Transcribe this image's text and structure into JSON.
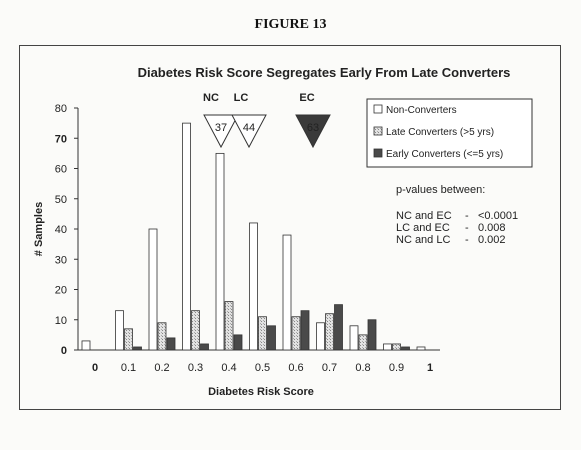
{
  "figure_label": "FIGURE 13",
  "chart_data": {
    "type": "bar",
    "title": "Diabetes Risk Score Segregates Early From Late Converters",
    "xlabel": "Diabetes Risk Score",
    "ylabel": "# Samples",
    "ylim": [
      0,
      80
    ],
    "yticks": [
      "0",
      "10",
      "20",
      "30",
      "40",
      "50",
      "60",
      "70",
      "80"
    ],
    "categories": [
      "0",
      "0.1",
      "0.2",
      "0.3",
      "0.4",
      "0.5",
      "0.6",
      "0.7",
      "0.8",
      "0.9",
      "1"
    ],
    "highlight_color": "#c8961e",
    "highlight_labels": [
      "0",
      "70",
      "1"
    ],
    "series": [
      {
        "name": "Non-Converters",
        "fill": "#ffffff",
        "values": [
          3,
          13,
          40,
          75,
          65,
          42,
          38,
          9,
          8,
          2,
          1
        ]
      },
      {
        "name": "Late Converters (>5 yrs)",
        "fill": "#d8d8d8",
        "values": [
          0,
          7,
          9,
          13,
          16,
          11,
          11,
          12,
          5,
          2,
          0
        ]
      },
      {
        "name": "Early Converters (<=5 yrs)",
        "fill": "#4a4a4a",
        "values": [
          0,
          1,
          4,
          2,
          5,
          8,
          13,
          15,
          10,
          1,
          0
        ]
      }
    ],
    "legend_position": "top-right",
    "median_markers": [
      {
        "label": "NC",
        "value": "37",
        "fill": "#ffffff"
      },
      {
        "label": "LC",
        "value": "44",
        "fill": "#ffffff"
      },
      {
        "label": "EC",
        "value": "63",
        "fill": "#3a3a3a"
      }
    ],
    "annotation": {
      "heading": "p-values between:",
      "rows": [
        {
          "pair": "NC and EC",
          "sep": "-",
          "value": "<0.0001"
        },
        {
          "pair": "LC and EC",
          "sep": "-",
          "value": "0.008"
        },
        {
          "pair": "NC and LC",
          "sep": "-",
          "value": "0.002"
        }
      ]
    }
  }
}
